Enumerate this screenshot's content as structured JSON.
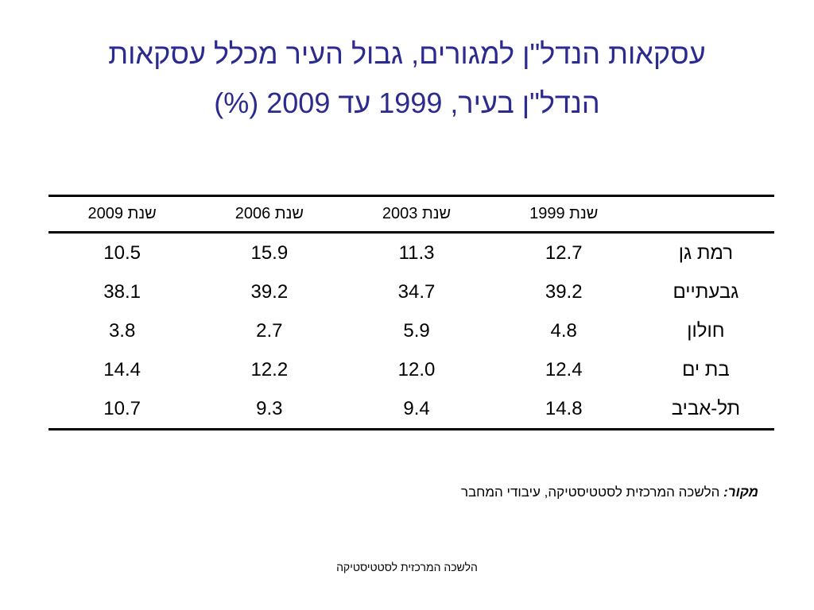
{
  "title": {
    "line1": "עסקאות הנדל\"ן למגורים, גבול העיר מכלל עסקאות",
    "line2": "הנדל\"ן בעיר, 1999 עד 2009 (%)"
  },
  "table": {
    "headers": [
      "",
      "שנת 1999",
      "שנת 2003",
      "שנת 2006",
      "שנת 2009"
    ],
    "rows": [
      {
        "name": "רמת גן",
        "values": [
          "12.7",
          "11.3",
          "15.9",
          "10.5"
        ]
      },
      {
        "name": "גבעתיים",
        "values": [
          "39.2",
          "34.7",
          "39.2",
          "38.1"
        ]
      },
      {
        "name": "חולון",
        "values": [
          "4.8",
          "5.9",
          "2.7",
          "3.8"
        ]
      },
      {
        "name": "בת ים",
        "values": [
          "12.4",
          "12.0",
          "12.2",
          "14.4"
        ]
      },
      {
        "name": "תל-אביב",
        "values": [
          "14.8",
          "9.4",
          "9.3",
          "10.7"
        ]
      }
    ]
  },
  "source": {
    "label": "מקור:",
    "text": " הלשכה המרכזית לסטטיסטיקה, עיבודי המחבר"
  },
  "footer": {
    "text": "הלשכה המרכזית לסטטיסטיקה"
  }
}
